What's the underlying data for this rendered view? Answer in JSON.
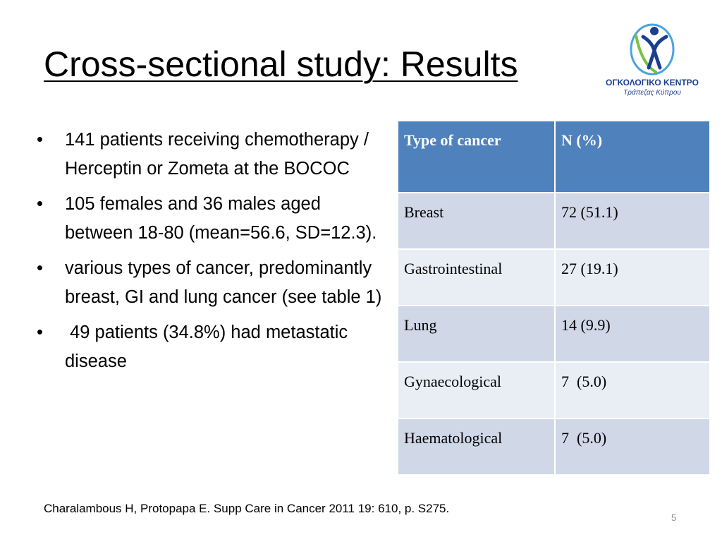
{
  "slide": {
    "title": "Cross-sectional study: Results",
    "page_number": "5",
    "citation": "Charalambous H, Protopapa E. Supp Care in Cancer 2011 19: 610, p. S275."
  },
  "logo": {
    "name": "ΟΓΚΟΛΟΓΙΚΟ ΚΕΝΤΡΟ",
    "subtitle": "Τράπεζας Κύπρου"
  },
  "bullets": [
    {
      "marker": "•",
      "text": "141 patients receiving chemotherapy / Herceptin or Zometa at the BOCOC"
    },
    {
      "marker": "•",
      "text": "105 females and 36 males aged between 18-80 (mean=56.6, SD=12.3)."
    },
    {
      "marker": "•",
      "text": "various types of cancer, predominantly breast, GI and lung cancer (see table 1)"
    },
    {
      "marker": "•",
      "text": " 49 patients (34.8%) had metastatic disease"
    }
  ],
  "table": {
    "headers": [
      "Type of cancer",
      "N (%)"
    ],
    "rows": [
      [
        "Breast",
        "72 (51.1)"
      ],
      [
        "Gastrointestinal",
        "27 (19.1)"
      ],
      [
        "Lung",
        "14 (9.9)"
      ],
      [
        "Gynaecological",
        "7  (5.0)"
      ],
      [
        "Haematological",
        "7  (5.0)"
      ]
    ]
  },
  "colors": {
    "header_bg": "#4f81bd",
    "row_odd_bg": "#d0d8e8",
    "row_even_bg": "#e9edf4",
    "logo_blue": "#1a3f8f",
    "logo_green": "#7ac143",
    "logo_lightblue": "#4aa3df"
  }
}
